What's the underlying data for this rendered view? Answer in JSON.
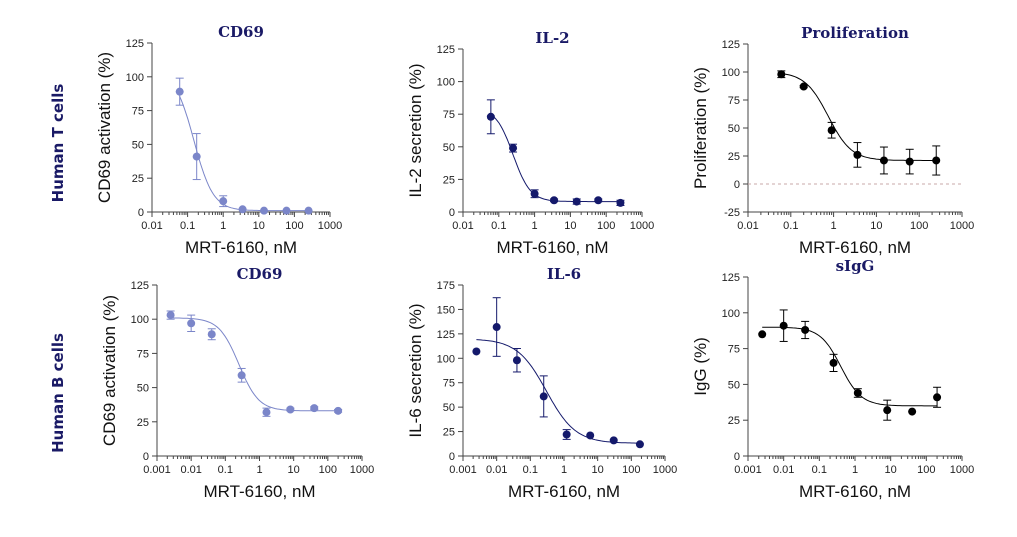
{
  "row_labels": [
    "Human  T cells",
    "Human B cells"
  ],
  "chart_data": [
    {
      "type": "scatter",
      "title": "CD69",
      "xlabel": "MRT-6160, nM",
      "ylabel": "CD69 activation (%)",
      "xscale": "log",
      "xlim": [
        0.01,
        1000
      ],
      "xticks": [
        "0.01",
        "0.1",
        "1",
        "10",
        "100",
        "1000"
      ],
      "ylim": [
        0,
        125
      ],
      "yticks": [
        "0",
        "25",
        "50",
        "75",
        "100",
        "125"
      ],
      "color": "#7b86c9",
      "fit": {
        "top": 105,
        "bottom": 1,
        "ic50": 0.15,
        "hill": 1.6
      },
      "series": [
        {
          "name": "CD69",
          "x": [
            0.06,
            0.18,
            1,
            3.5,
            14,
            60,
            250
          ],
          "y": [
            89,
            41,
            8,
            2,
            1,
            1,
            1
          ],
          "err": [
            10,
            17,
            4,
            0,
            0,
            0,
            0
          ]
        }
      ]
    },
    {
      "type": "scatter",
      "title": "IL-2",
      "xlabel": "MRT-6160, nM",
      "ylabel": "IL-2 secretion (%)",
      "xscale": "log",
      "xlim": [
        0.01,
        1000
      ],
      "xticks": [
        "0.01",
        "0.1",
        "1",
        "10",
        "100",
        "1000"
      ],
      "ylim": [
        0,
        125
      ],
      "yticks": [
        "0",
        "25",
        "50",
        "75",
        "100",
        "125"
      ],
      "color": "#14196b",
      "fit": {
        "top": 80,
        "bottom": 8,
        "ic50": 0.25,
        "hill": 1.8
      },
      "series": [
        {
          "name": "IL-2",
          "x": [
            0.06,
            0.25,
            1,
            3.5,
            15,
            60,
            250
          ],
          "y": [
            73,
            49,
            14,
            9,
            8,
            9,
            7
          ],
          "err": [
            13,
            3,
            3,
            1,
            2,
            1,
            2
          ]
        }
      ]
    },
    {
      "type": "scatter",
      "title": "Proliferation",
      "xlabel": "MRT-6160, nM",
      "ylabel": "Proliferation (%)",
      "xscale": "log",
      "xlim": [
        0.01,
        1000
      ],
      "xticks": [
        "0.01",
        "0.1",
        "1",
        "10",
        "100",
        "1000"
      ],
      "ylim": [
        -25,
        125
      ],
      "yticks": [
        "-25",
        "0",
        "25",
        "50",
        "75",
        "100",
        "125"
      ],
      "color": "#000000",
      "zero_line": true,
      "fit": {
        "top": 100,
        "bottom": 21,
        "ic50": 0.75,
        "hill": 1.6
      },
      "series": [
        {
          "name": "Proliferation",
          "x": [
            0.06,
            0.2,
            0.9,
            3.6,
            15,
            60,
            250
          ],
          "y": [
            98,
            87,
            48,
            26,
            21,
            20,
            21
          ],
          "err": [
            3,
            1,
            7,
            11,
            12,
            11,
            13
          ]
        }
      ]
    },
    {
      "type": "scatter",
      "title": "CD69",
      "xlabel": "MRT-6160, nM",
      "ylabel": "CD69 activation (%)",
      "xscale": "log",
      "xlim": [
        0.001,
        1000
      ],
      "xticks": [
        "0.001",
        "0.01",
        "0.1",
        "1",
        "10",
        "100",
        "1000"
      ],
      "ylim": [
        0,
        125
      ],
      "yticks": [
        "0",
        "25",
        "50",
        "75",
        "100",
        "125"
      ],
      "color": "#7b86c9",
      "fit": {
        "top": 101,
        "bottom": 33,
        "ic50": 0.25,
        "hill": 1.5
      },
      "series": [
        {
          "name": "CD69",
          "x": [
            0.0025,
            0.01,
            0.04,
            0.3,
            1.6,
            8,
            40,
            200
          ],
          "y": [
            103,
            97,
            89,
            59,
            32,
            34,
            35,
            33
          ],
          "err": [
            3,
            6,
            4,
            5,
            3,
            1,
            1,
            1
          ]
        }
      ]
    },
    {
      "type": "scatter",
      "title": "IL-6",
      "xlabel": "MRT-6160, nM",
      "ylabel": "IL-6 secretion (%)",
      "xscale": "log",
      "xlim": [
        0.001,
        1000
      ],
      "xticks": [
        "0.001",
        "0.01",
        "0.1",
        "1",
        "10",
        "100",
        "1000"
      ],
      "ylim": [
        0,
        175
      ],
      "yticks": [
        "0",
        "25",
        "50",
        "75",
        "100",
        "125",
        "150",
        "175"
      ],
      "color": "#14196b",
      "fit": {
        "top": 120,
        "bottom": 13,
        "ic50": 0.3,
        "hill": 1.0
      },
      "series": [
        {
          "name": "IL-6",
          "x": [
            0.0025,
            0.01,
            0.04,
            0.25,
            1.2,
            6,
            30,
            180
          ],
          "y": [
            107,
            132,
            98,
            61,
            22,
            21,
            16,
            12
          ],
          "err": [
            0,
            30,
            12,
            21,
            5,
            0,
            0,
            0
          ]
        }
      ]
    },
    {
      "type": "scatter",
      "title": "sIgG",
      "xlabel": "MRT-6160, nM",
      "ylabel": "IgG (%)",
      "xscale": "log",
      "xlim": [
        0.001,
        1000
      ],
      "xticks": [
        "0.001",
        "0.01",
        "0.1",
        "1",
        "10",
        "100",
        "1000"
      ],
      "ylim": [
        0,
        125
      ],
      "yticks": [
        "0",
        "25",
        "50",
        "75",
        "100",
        "125"
      ],
      "color": "#000000",
      "fit": {
        "top": 90,
        "bottom": 35,
        "ic50": 0.4,
        "hill": 1.5
      },
      "series": [
        {
          "name": "sIgG",
          "x": [
            0.0025,
            0.01,
            0.04,
            0.25,
            1.2,
            8,
            40,
            200
          ],
          "y": [
            85,
            91,
            88,
            65,
            44,
            32,
            31,
            41
          ],
          "err": [
            0,
            11,
            6,
            6,
            3,
            7,
            0,
            7
          ]
        }
      ]
    }
  ]
}
